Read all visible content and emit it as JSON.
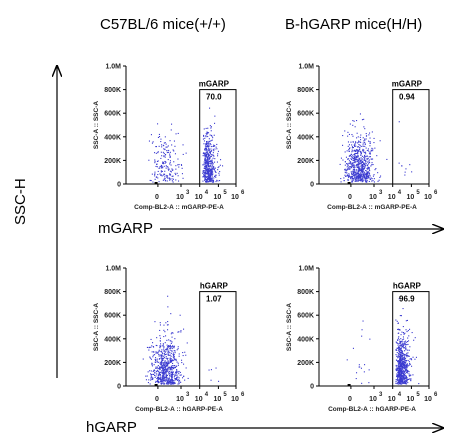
{
  "column_titles": [
    "C57BL/6 mice(+/+)",
    "B-hGARP mice(H/H)"
  ],
  "y_arrow_label": "SSC-H",
  "row_markers": [
    "mGARP",
    "hGARP"
  ],
  "colors": {
    "dots": "#3a3ad0",
    "axis": "#000000"
  },
  "chart_data": [
    {
      "type": "scatter",
      "marker": "mGARP",
      "strain": "C57BL/6 mice(+/+)",
      "xlabel": "Comp-BL2-A :: mGARP-PE-A",
      "ylabel": "SSC-A :: SSC-A",
      "xticks": [
        "0",
        "10",
        "10",
        "10",
        "10"
      ],
      "xtick_exponents": [
        "",
        "3",
        "4",
        "5",
        "6"
      ],
      "yticks": [
        "0",
        "200K",
        "400K",
        "600K",
        "800K",
        "1.0M"
      ],
      "gate": {
        "name": "mGARP",
        "value": "70.0",
        "x_range": [
          10000,
          1000000
        ],
        "y_range": [
          0,
          800000
        ]
      },
      "positive_percent": 70.0
    },
    {
      "type": "scatter",
      "marker": "mGARP",
      "strain": "B-hGARP mice(H/H)",
      "xlabel": "Comp-BL2-A :: mGARP-PE-A",
      "ylabel": "SSC-A :: SSC-A",
      "xticks": [
        "0",
        "10",
        "10",
        "10",
        "10"
      ],
      "xtick_exponents": [
        "",
        "3",
        "4",
        "5",
        "6"
      ],
      "yticks": [
        "0",
        "200K",
        "400K",
        "600K",
        "800K",
        "1.0M"
      ],
      "gate": {
        "name": "mGARP",
        "value": "0.94",
        "x_range": [
          10000,
          1000000
        ],
        "y_range": [
          0,
          800000
        ]
      },
      "positive_percent": 0.94
    },
    {
      "type": "scatter",
      "marker": "hGARP",
      "strain": "C57BL/6 mice(+/+)",
      "xlabel": "Comp-BL2-A :: hGARP-PE-A",
      "ylabel": "SSC-A :: SSC-A",
      "xticks": [
        "0",
        "10",
        "10",
        "10",
        "10"
      ],
      "xtick_exponents": [
        "",
        "3",
        "4",
        "5",
        "6"
      ],
      "yticks": [
        "0",
        "200K",
        "400K",
        "600K",
        "800K",
        "1.0M"
      ],
      "gate": {
        "name": "hGARP",
        "value": "1.07",
        "x_range": [
          10000,
          1000000
        ],
        "y_range": [
          0,
          800000
        ]
      },
      "positive_percent": 1.07
    },
    {
      "type": "scatter",
      "marker": "hGARP",
      "strain": "B-hGARP mice(H/H)",
      "xlabel": "Comp-BL2-A :: hGARP-PE-A",
      "ylabel": "SSC-A :: SSC-A",
      "xticks": [
        "0",
        "10",
        "10",
        "10",
        "10"
      ],
      "xtick_exponents": [
        "",
        "3",
        "4",
        "5",
        "6"
      ],
      "yticks": [
        "0",
        "200K",
        "400K",
        "600K",
        "800K",
        "1.0M"
      ],
      "gate": {
        "name": "hGARP",
        "value": "96.9",
        "x_range": [
          10000,
          1000000
        ],
        "y_range": [
          0,
          800000
        ]
      },
      "positive_percent": 96.9
    }
  ]
}
